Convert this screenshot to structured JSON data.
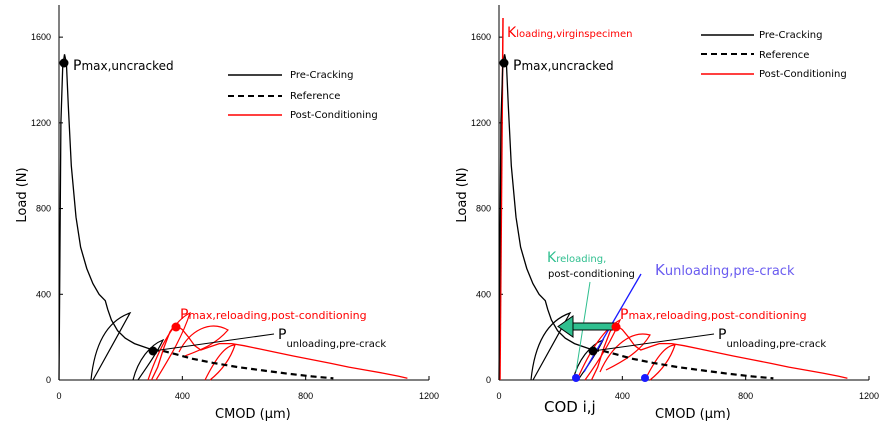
{
  "chart_data": [
    {
      "type": "line",
      "xlabel": "CMOD (μm)",
      "ylabel": "Load (N)",
      "xlim": [
        0,
        1200
      ],
      "ylim": [
        0,
        1750
      ],
      "xticks": [
        0,
        400,
        800,
        1200
      ],
      "yticks": [
        0,
        400,
        800,
        1200,
        1600
      ],
      "legend_position": "top-right",
      "series": [
        {
          "name": "Pre-Cracking",
          "color": "#000000",
          "dash": "solid",
          "x": [
            0,
            6,
            12,
            18,
            24,
            30,
            40,
            55,
            70,
            90,
            110,
            130,
            150,
            158,
            170,
            190,
            215,
            245,
            280,
            305
          ],
          "y": [
            0,
            1200,
            1460,
            1520,
            1480,
            1280,
            1000,
            760,
            620,
            520,
            450,
            400,
            370,
            330,
            280,
            230,
            195,
            170,
            152,
            140
          ]
        },
        {
          "name": "Reference",
          "color": "#000000",
          "dash": "dashed",
          "x": [
            305,
            340,
            380,
            430,
            500,
            580,
            660,
            740,
            820,
            890
          ],
          "y": [
            140,
            135,
            120,
            100,
            80,
            60,
            45,
            30,
            17,
            8
          ]
        },
        {
          "name": "Post-Conditioning",
          "color": "#ff0000",
          "dash": "solid",
          "x": [
            300,
            320,
            340,
            360,
            372,
            385,
            400,
            420,
            440,
            460,
            490,
            520,
            560,
            600,
            650,
            700,
            760,
            820,
            880,
            940,
            1000,
            1050,
            1100,
            1130
          ],
          "y": [
            0,
            60,
            150,
            225,
            250,
            250,
            235,
            200,
            160,
            140,
            155,
            170,
            170,
            160,
            145,
            130,
            112,
            95,
            78,
            60,
            45,
            32,
            18,
            8
          ]
        }
      ],
      "annotations": {
        "p_max_uncracked": {
          "main": "P",
          "sub": "max,uncracked"
        },
        "p_max_reloading": {
          "main": "P",
          "sub": "max,reloading,post-conditioning"
        },
        "p_unloading": {
          "main": "P",
          "sub": "unloading,pre-crack"
        }
      }
    },
    {
      "type": "line",
      "xlabel": "CMOD (μm)",
      "ylabel": "Load (N)",
      "xlim": [
        0,
        1200
      ],
      "ylim": [
        0,
        1750
      ],
      "xticks": [
        0,
        400,
        800,
        1200
      ],
      "yticks": [
        0,
        400,
        800,
        1200,
        1600
      ],
      "legend_position": "top-right",
      "series": [
        {
          "name": "Pre-Cracking",
          "color": "#000000",
          "dash": "solid"
        },
        {
          "name": "Reference",
          "color": "#000000",
          "dash": "dashed"
        },
        {
          "name": "Post-Conditioning",
          "color": "#ff0000",
          "dash": "solid"
        }
      ],
      "annotations": {
        "k_loading": {
          "main": "K",
          "sub": "loading,virginspecimen"
        },
        "p_max_uncracked": {
          "main": "P",
          "sub": "max,uncracked"
        },
        "k_reloading": {
          "main": "K",
          "sub": "reloading,",
          "line2": "post-conditioning"
        },
        "k_unloading": {
          "main": "K",
          "sub": "unloading,pre-crack"
        },
        "p_max_reloading": {
          "main": "P",
          "sub": "max,reloading,post-conditioning"
        },
        "p_unloading": {
          "main": "P",
          "sub": "unloading,pre-crack"
        },
        "cod": "COD i,j"
      }
    }
  ]
}
